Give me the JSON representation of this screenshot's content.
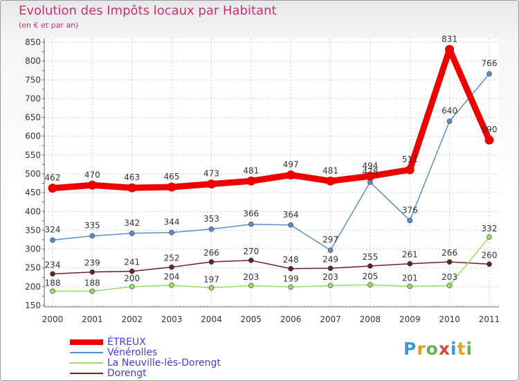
{
  "chart_data": {
    "type": "line",
    "title": "Evolution des Impôts locaux par Habitant",
    "subtitle": "(en € et par an)",
    "x": [
      "2000",
      "2001",
      "2002",
      "2003",
      "2004",
      "2005",
      "2006",
      "2007",
      "2008",
      "2009",
      "2010",
      "2011"
    ],
    "ylim": [
      150,
      850
    ],
    "yticks": [
      150,
      200,
      250,
      300,
      350,
      400,
      450,
      500,
      550,
      600,
      650,
      700,
      750,
      800,
      850
    ],
    "grid": true,
    "legend_position": "bottom-left",
    "series": [
      {
        "name": "ÉTREUX",
        "color": "#ee0000",
        "values": [
          462,
          470,
          463,
          465,
          473,
          481,
          497,
          481,
          494,
          511,
          831,
          590
        ],
        "labels": [
          "462",
          "470",
          "463",
          "465",
          "473",
          "481",
          "497",
          "481",
          "494",
          "511",
          "831",
          "590"
        ]
      },
      {
        "name": "Vénérolles",
        "color": "#5b8ec9",
        "values": [
          324,
          335,
          342,
          344,
          353,
          366,
          364,
          297,
          478,
          376,
          640,
          766
        ],
        "labels": [
          "324",
          "335",
          "342",
          "344",
          "353",
          "366",
          "364",
          "297",
          "478",
          "376",
          "640",
          "766"
        ]
      },
      {
        "name": "La Neuville-lès-Dorengt",
        "color": "#99dd66",
        "values": [
          188,
          188,
          200,
          204,
          197,
          203,
          199,
          203,
          205,
          201,
          203,
          332
        ],
        "labels": [
          "188",
          "188",
          "200",
          "204",
          "197",
          "203",
          "199",
          "203",
          "205",
          "201",
          "203",
          "332"
        ]
      },
      {
        "name": "Dorengt",
        "color": "#6b2222",
        "values": [
          234,
          239,
          241,
          252,
          266,
          270,
          248,
          249,
          255,
          261,
          266,
          260
        ],
        "labels": [
          "234",
          "239",
          "241",
          "252",
          "266",
          "270",
          "248",
          "249",
          "255",
          "261",
          "266",
          "260"
        ]
      }
    ]
  },
  "logo": {
    "letters": [
      "P",
      "r",
      "o",
      "x",
      "i",
      "t",
      "i"
    ],
    "colors": [
      "#3a9ad9",
      "#e6a020",
      "#6ab04c",
      "#d94a3a",
      "#3a9ad9",
      "#e6a020",
      "#6ab04c"
    ]
  }
}
